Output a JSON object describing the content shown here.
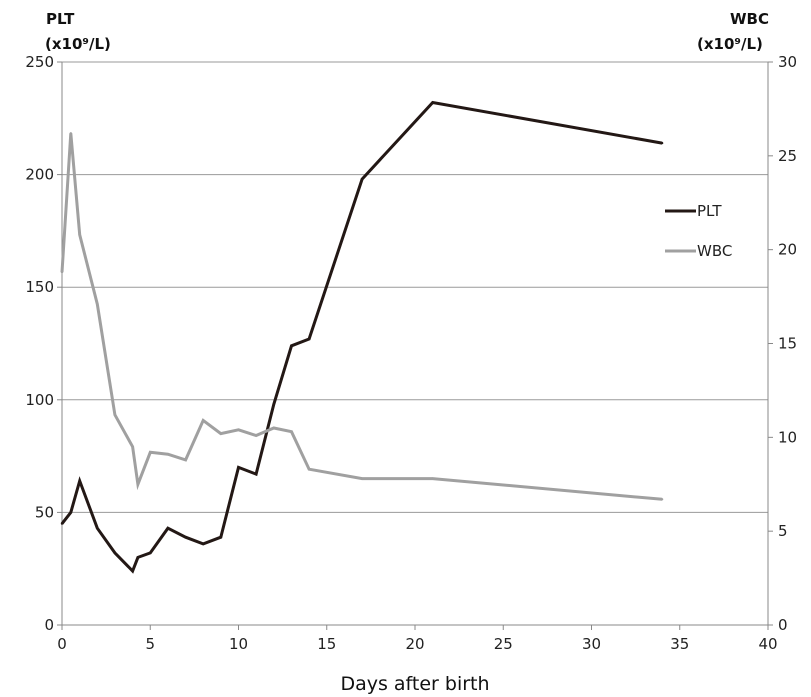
{
  "chart_data": {
    "type": "line",
    "xlabel": "Days after birth",
    "xlim": [
      0,
      40
    ],
    "x_ticks": [
      "0",
      "5",
      "10",
      "15",
      "20",
      "25",
      "30",
      "35",
      "40"
    ],
    "y_left": {
      "label_line1": "PLT",
      "label_line2": "(x10⁹/L)",
      "lim": [
        0,
        250
      ],
      "ticks": [
        "0",
        "50",
        "100",
        "150",
        "200",
        "250"
      ]
    },
    "y_right": {
      "label_line1": "WBC",
      "label_line2": "(x10⁹/L)",
      "lim": [
        0,
        30
      ],
      "ticks": [
        "0",
        "5",
        "10",
        "15",
        "20",
        "25",
        "30"
      ]
    },
    "grid": true,
    "legend_position": "right",
    "series": [
      {
        "name": "PLT",
        "axis": "left",
        "color": "#231815",
        "points": [
          [
            0,
            45
          ],
          [
            0.5,
            50
          ],
          [
            1,
            64
          ],
          [
            2,
            43
          ],
          [
            3,
            32
          ],
          [
            4,
            24
          ],
          [
            4.3,
            30
          ],
          [
            5,
            32
          ],
          [
            6,
            43
          ],
          [
            7,
            39
          ],
          [
            8,
            36
          ],
          [
            9,
            39
          ],
          [
            10,
            70
          ],
          [
            11,
            67
          ],
          [
            12,
            98
          ],
          [
            13,
            124
          ],
          [
            14,
            127
          ],
          [
            17,
            198
          ],
          [
            21,
            232
          ],
          [
            34,
            214
          ]
        ]
      },
      {
        "name": "WBC",
        "axis": "right",
        "color": "#a0a0a0",
        "points": [
          [
            0,
            18.8
          ],
          [
            0.5,
            26.2
          ],
          [
            1,
            20.8
          ],
          [
            2,
            17.1
          ],
          [
            3,
            11.2
          ],
          [
            4,
            9.5
          ],
          [
            4.3,
            7.5
          ],
          [
            5,
            9.2
          ],
          [
            6,
            9.1
          ],
          [
            7,
            8.8
          ],
          [
            8,
            10.9
          ],
          [
            9,
            10.2
          ],
          [
            10,
            10.4
          ],
          [
            11,
            10.1
          ],
          [
            12,
            10.5
          ],
          [
            13,
            10.3
          ],
          [
            14,
            8.3
          ],
          [
            17,
            7.8
          ],
          [
            21,
            7.8
          ],
          [
            34,
            6.7
          ]
        ]
      }
    ]
  }
}
